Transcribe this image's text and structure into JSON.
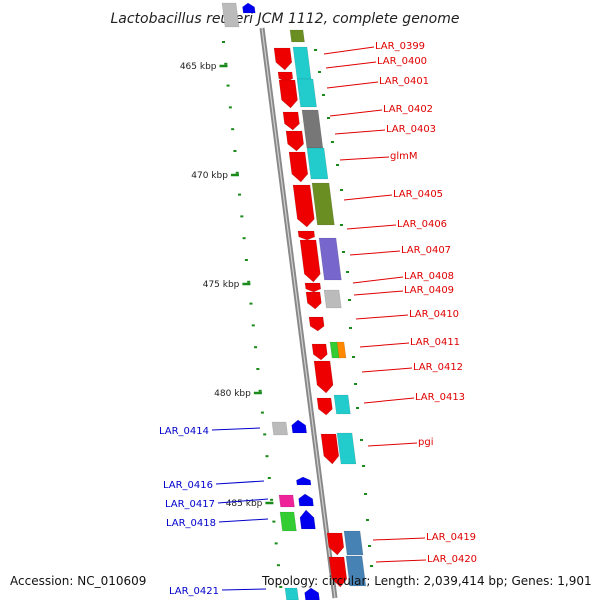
{
  "title": "Lactobacillus reuteri JCM 1112, complete genome",
  "accession": "Accession: NC_010609",
  "topology": "Topology: circular; Length: 2,039,414 bp; Genes: 1,901",
  "colors": {
    "backbone": "#888888",
    "tick": "#1a8a1a",
    "right_label": "#e00000",
    "left_label": "#0000cc",
    "cds_red": "#ee0000",
    "cds_blue": "#0000ee",
    "cyan": "#22cccc",
    "olive": "#6b8e23",
    "grey": "#777777",
    "light_grey": "#bbbbbb",
    "purple": "#7766cc",
    "steel_blue": "#4682b4",
    "green": "#33cc33",
    "orange": "#ff8800",
    "magenta": "#ee2299"
  },
  "kbp_labels": [
    "465 kbp",
    "470 kbp",
    "475 kbp",
    "480 kbp",
    "485 kbp"
  ],
  "right_genes": [
    "LAR_0399",
    "LAR_0400",
    "LAR_0401",
    "LAR_0402",
    "LAR_0403",
    "glmM",
    "LAR_0405",
    "LAR_0406",
    "LAR_0407",
    "LAR_0408",
    "LAR_0409",
    "LAR_0410",
    "LAR_0411",
    "LAR_0412",
    "LAR_0413",
    "pgi",
    "LAR_0419",
    "LAR_0420"
  ],
  "left_genes": [
    "LAR_0414",
    "LAR_0416",
    "LAR_0417",
    "LAR_0418",
    "LAR_0421"
  ]
}
